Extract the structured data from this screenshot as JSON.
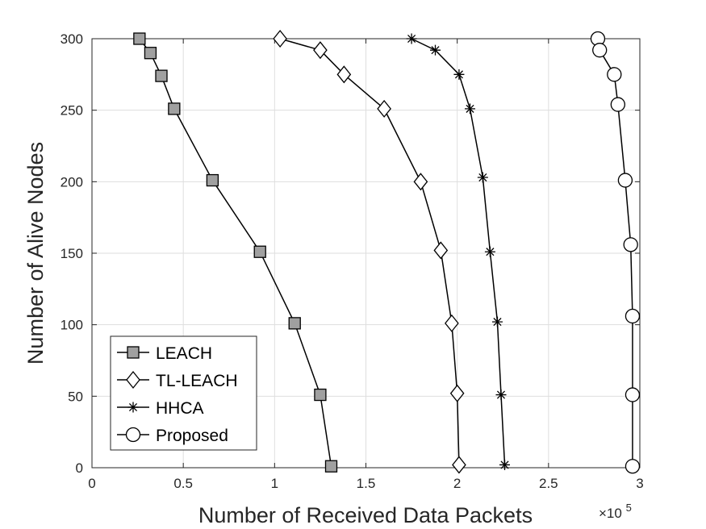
{
  "chart_data": {
    "type": "line",
    "xlabel": "Number of Received Data Packets",
    "ylabel": "Number of Alive Nodes",
    "x_exponent_base": "×10",
    "x_exponent_power": "5",
    "xlim": [
      0,
      3
    ],
    "ylim": [
      0,
      300
    ],
    "xticks": [
      0,
      0.5,
      1,
      1.5,
      2,
      2.5,
      3
    ],
    "xtick_labels": [
      "0",
      "0.5",
      "1",
      "1.5",
      "2",
      "2.5",
      "3"
    ],
    "yticks": [
      0,
      50,
      100,
      150,
      200,
      250,
      300
    ],
    "ytick_labels": [
      "0",
      "50",
      "100",
      "150",
      "200",
      "250",
      "300"
    ],
    "grid": true,
    "legend_position": "bottom-left",
    "series": [
      {
        "name": "LEACH",
        "marker": "square",
        "marker_fill": "#a0a0a0",
        "x": [
          0.26,
          0.32,
          0.38,
          0.45,
          0.66,
          0.92,
          1.11,
          1.25,
          1.31
        ],
        "y": [
          300,
          290,
          274,
          251,
          201,
          151,
          101,
          51,
          1
        ]
      },
      {
        "name": "TL-LEACH",
        "marker": "diamond",
        "marker_fill": "#ffffff",
        "x": [
          1.03,
          1.25,
          1.38,
          1.6,
          1.8,
          1.91,
          1.97,
          2.0,
          2.01
        ],
        "y": [
          300,
          292,
          275,
          251,
          200,
          152,
          101,
          52,
          2
        ]
      },
      {
        "name": "HHCA",
        "marker": "asterisk",
        "marker_fill": "none",
        "x": [
          1.75,
          1.88,
          2.01,
          2.07,
          2.14,
          2.18,
          2.22,
          2.24,
          2.26
        ],
        "y": [
          300,
          292,
          275,
          251,
          203,
          151,
          102,
          51,
          2
        ]
      },
      {
        "name": "Proposed",
        "marker": "circle",
        "marker_fill": "#ffffff",
        "x": [
          2.77,
          2.78,
          2.86,
          2.88,
          2.92,
          2.95,
          2.96,
          2.96,
          2.96
        ],
        "y": [
          300,
          292,
          275,
          254,
          201,
          156,
          106,
          51,
          1
        ]
      }
    ]
  }
}
